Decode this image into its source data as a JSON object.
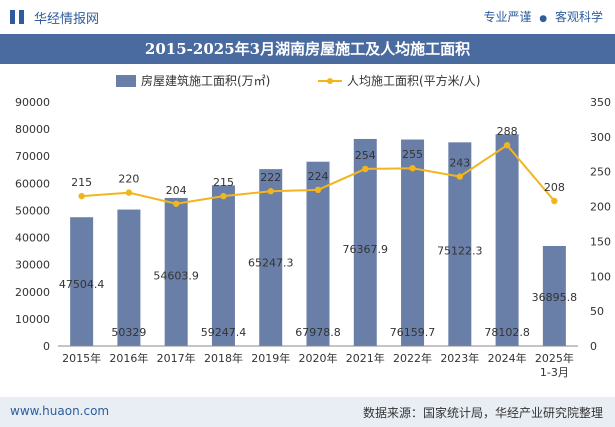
{
  "header": {
    "site_name": "华经情报网",
    "tag_left": "专业严谨",
    "tag_sep": "●",
    "tag_right": "客观科学"
  },
  "footer": {
    "url": "www.huaon.com",
    "source": "数据来源：国家统计局，华经产业研究院整理"
  },
  "colors": {
    "bar": "#6a7fa8",
    "line": "#f2b51d",
    "title_bg": "#4a6b9f",
    "brand": "#2d5d9c"
  },
  "chart_data": {
    "type": "bar",
    "title": "2015-2025年3月湖南房屋施工及人均施工面积",
    "categories": [
      "2015年",
      "2016年",
      "2017年",
      "2018年",
      "2019年",
      "2020年",
      "2021年",
      "2022年",
      "2023年",
      "2024年",
      "2025年1-3月"
    ],
    "series": [
      {
        "name": "房屋建筑施工面积(万㎡)",
        "type": "bar",
        "axis": "left",
        "values": [
          47504.4,
          50329,
          54603.9,
          59247.4,
          65247.3,
          67978.8,
          76367.9,
          76159.7,
          75122.3,
          78102.8,
          36895.8
        ],
        "labels": [
          "47504.4",
          "50329",
          "54603.9",
          "59247.4",
          "65247.3",
          "67978.8",
          "76367.9",
          "76159.7",
          "75122.3",
          "78102.8",
          "36895.8"
        ]
      },
      {
        "name": "人均施工面积(平方米/人)",
        "type": "line",
        "axis": "right",
        "values": [
          215,
          220,
          204,
          215,
          222,
          224,
          254,
          255,
          243,
          288,
          208
        ],
        "labels": [
          "215",
          "220",
          "204",
          "215",
          "222",
          "224",
          "254",
          "255",
          "243",
          "288",
          "208"
        ]
      }
    ],
    "y_left": {
      "min": 0,
      "max": 90000,
      "ticks": [
        "0",
        "10000",
        "20000",
        "30000",
        "40000",
        "50000",
        "60000",
        "70000",
        "80000",
        "90000"
      ]
    },
    "y_right": {
      "min": 0,
      "max": 350,
      "ticks": [
        "0",
        "50",
        "100",
        "150",
        "200",
        "250",
        "300",
        "350"
      ]
    },
    "legend_position": "top-center",
    "grid": false
  }
}
